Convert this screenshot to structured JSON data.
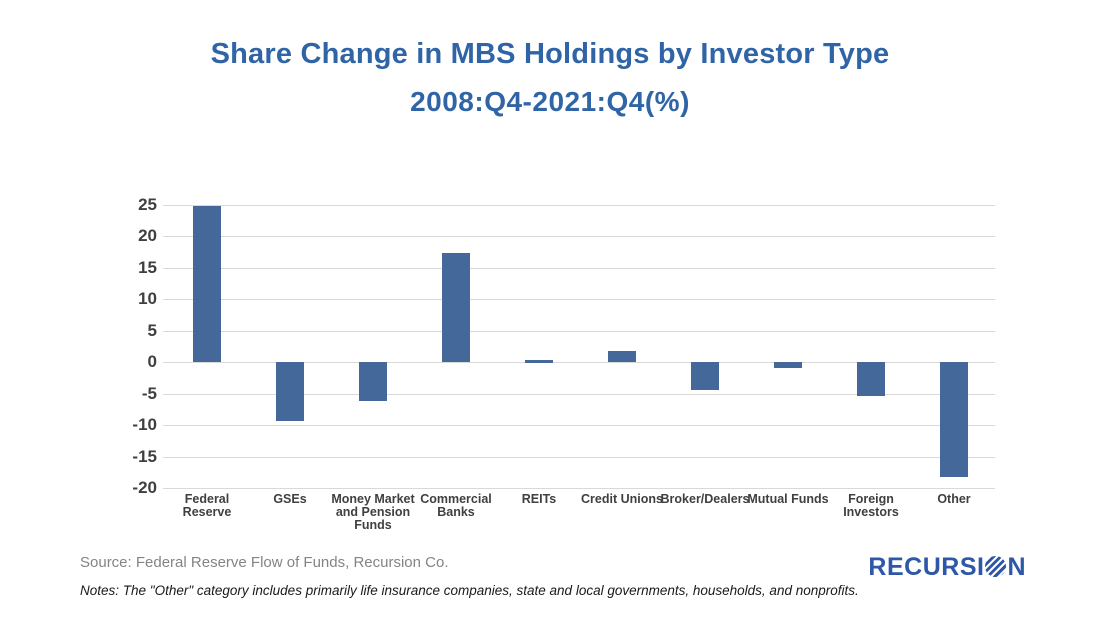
{
  "title": {
    "line1": "Share Change in MBS Holdings by Investor Type",
    "line2": "2008:Q4-2021:Q4(%)"
  },
  "chart_data": {
    "type": "bar",
    "title": "Share Change in MBS Holdings by Investor Type",
    "subtitle": "2008:Q4-2021:Q4(%)",
    "categories": [
      "Federal Reserve",
      "GSEs",
      "Money Market and Pension Funds",
      "Commercial Banks",
      "REITs",
      "Credit Unions",
      "Broker/Dealers",
      "Mutual Funds",
      "Foreign Investors",
      "Other"
    ],
    "category_label_lines": [
      [
        "Federal",
        "Reserve"
      ],
      [
        "GSEs"
      ],
      [
        "Money Market",
        "and Pension",
        "Funds"
      ],
      [
        "Commercial",
        "Banks"
      ],
      [
        "REITs"
      ],
      [
        "Credit Unions"
      ],
      [
        "Broker/Dealers"
      ],
      [
        "Mutual Funds"
      ],
      [
        "Foreign",
        "Investors"
      ],
      [
        "Other"
      ]
    ],
    "values": [
      24.7,
      -9.3,
      -6.2,
      17.3,
      0.4,
      1.8,
      -4.4,
      -1.0,
      -5.4,
      -18.3
    ],
    "xlabel": "",
    "ylabel": "",
    "ylim": [
      -20,
      25
    ],
    "yticks": [
      25,
      20,
      15,
      10,
      5,
      0,
      -5,
      -10,
      -15,
      -20
    ],
    "grid": true,
    "legend_position": "none",
    "bar_color": "#45689B",
    "gridline_color": "#d9d9d9"
  },
  "footer": {
    "source": "Source: Federal Reserve Flow of Funds, Recursion Co.",
    "notes": "Notes: The \"Other\" category includes primarily life insurance companies, state and local governments, households, and nonprofits.",
    "logo_text_before_globe": "RECURSI",
    "logo_text_after_globe": "N",
    "logo_globe_icon": "striped-globe-icon"
  },
  "colors": {
    "title_blue": "#2F64A7",
    "bar_blue": "#45689B",
    "logo_blue": "#2E57A7",
    "gridline_gray": "#d9d9d9",
    "axis_label_gray": "#3f3f3f",
    "source_gray": "#848484"
  }
}
